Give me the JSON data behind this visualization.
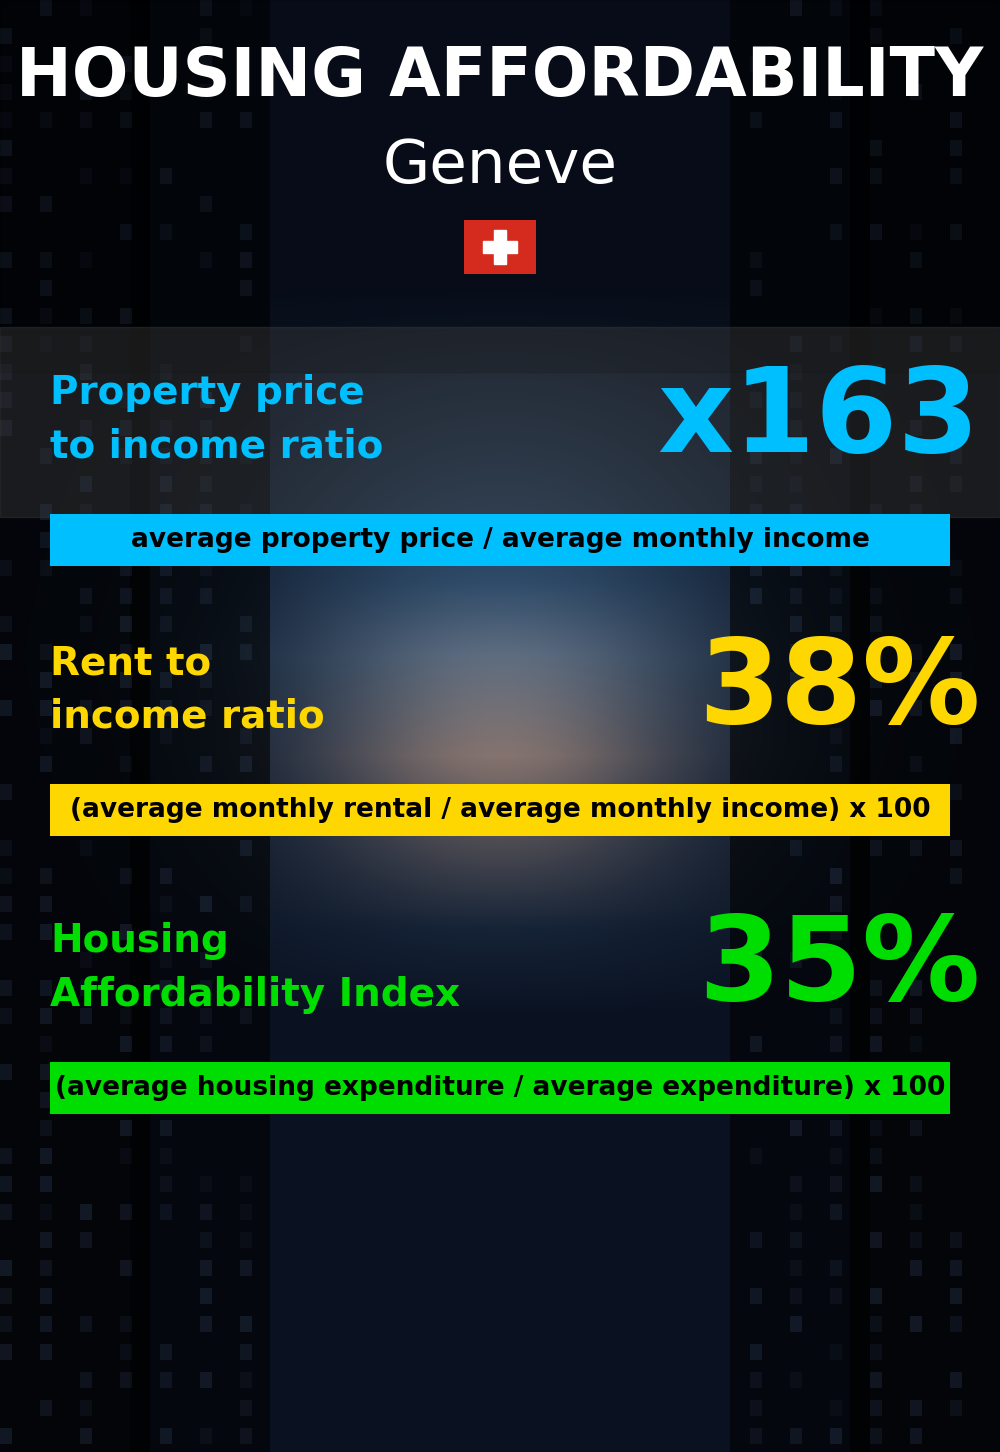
{
  "title_line1": "HOUSING AFFORDABILITY",
  "title_line2": "Geneve",
  "title_color": "#ffffff",
  "title_fontsize": 48,
  "subtitle_fontsize": 44,
  "flag_color": "#d52b1e",
  "cross_color": "#ffffff",
  "section1_label": "Property price\nto income ratio",
  "section1_value": "x163",
  "section1_label_color": "#00bfff",
  "section1_value_color": "#00bfff",
  "section1_sublabel": "average property price / average monthly income",
  "section1_sub_bg": "#00bfff",
  "section1_sub_text_color": "#000000",
  "section2_label": "Rent to\nincome ratio",
  "section2_value": "38%",
  "section2_label_color": "#ffd700",
  "section2_value_color": "#ffd700",
  "section2_sublabel": "(average monthly rental / average monthly income) x 100",
  "section2_sub_bg": "#ffd700",
  "section2_sub_text_color": "#000000",
  "section3_label": "Housing\nAffordability Index",
  "section3_value": "35%",
  "section3_label_color": "#00dd00",
  "section3_value_color": "#00dd00",
  "section3_sublabel": "(average housing expenditure / average expenditure) x 100",
  "section3_sub_bg": "#00dd00",
  "section3_sub_text_color": "#000000",
  "bg_color": "#080e18",
  "label_fontsize": 28,
  "value_fontsize": 85,
  "sublabel_fontsize": 19
}
